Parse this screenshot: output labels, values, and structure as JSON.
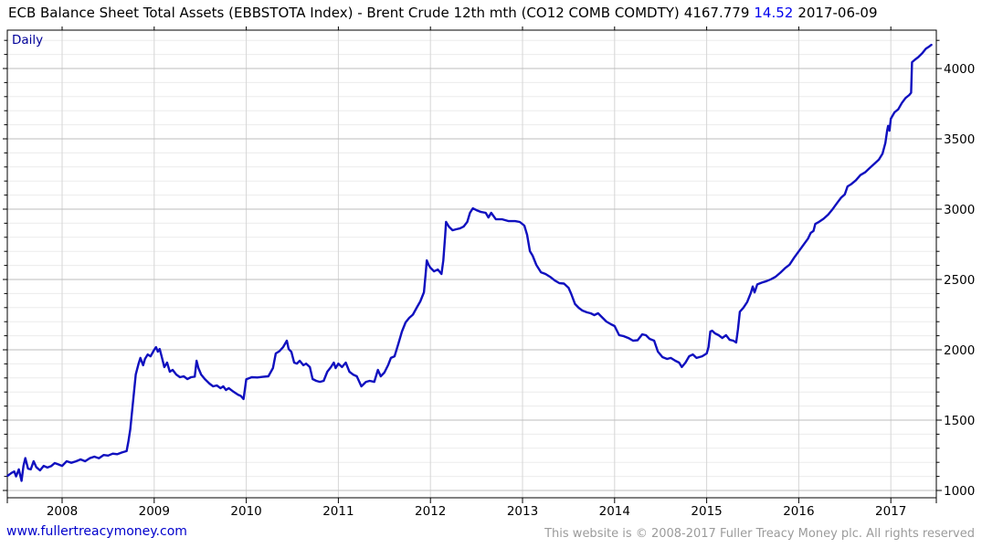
{
  "header": {
    "title": "ECB Balance Sheet Total Assets (EBBSTOTA Index) - Brent Crude 12th mth (CO12 COMB COMDTY)",
    "last_price": "4167.779",
    "change": "14.52",
    "date": "2017-06-09"
  },
  "footer": {
    "website_link": "www.fullertreacymoney.com",
    "copyright": "This website is © 2008-2017 Fuller Treacy Money plc. All rights reserved"
  },
  "colors": {
    "line": "#1010bf",
    "change_text": "#0000ee",
    "frequency_text": "#000099",
    "link": "#0000cc",
    "copyright_text": "#9b9b9b",
    "grid_minor": "#ececec",
    "grid_vertical": "#d6d6d6",
    "grid_major": "#bdbdbd",
    "axis": "#000000"
  },
  "chart_data": {
    "type": "line",
    "title": "ECB Balance Sheet Total Assets (EBBSTOTA Index) - Brent Crude 12th mth (CO12 COMB COMDTY)",
    "frequency_label": "Daily",
    "last_value": 4167.779,
    "change": 14.52,
    "date": "2017-06-09",
    "xlim": [
      2007.405,
      2017.495
    ],
    "ylim": [
      948,
      4273
    ],
    "x_ticks": [
      2008,
      2009,
      2010,
      2011,
      2012,
      2013,
      2014,
      2015,
      2016,
      2017
    ],
    "y_ticks_major": [
      1000,
      1500,
      2000,
      2500,
      3000,
      3500,
      4000
    ],
    "y_minor_step": 100,
    "grid": true,
    "legend_position": "none",
    "series": [
      {
        "name": "EBBSTOTA Index",
        "points": [
          [
            2007.41,
            1105
          ],
          [
            2007.45,
            1125
          ],
          [
            2007.48,
            1135
          ],
          [
            2007.5,
            1100
          ],
          [
            2007.53,
            1150
          ],
          [
            2007.56,
            1068
          ],
          [
            2007.58,
            1175
          ],
          [
            2007.6,
            1230
          ],
          [
            2007.63,
            1155
          ],
          [
            2007.66,
            1150
          ],
          [
            2007.69,
            1208
          ],
          [
            2007.72,
            1165
          ],
          [
            2007.76,
            1143
          ],
          [
            2007.8,
            1175
          ],
          [
            2007.84,
            1163
          ],
          [
            2007.88,
            1173
          ],
          [
            2007.92,
            1195
          ],
          [
            2007.96,
            1185
          ],
          [
            2008.0,
            1175
          ],
          [
            2008.05,
            1208
          ],
          [
            2008.1,
            1197
          ],
          [
            2008.15,
            1207
          ],
          [
            2008.2,
            1221
          ],
          [
            2008.25,
            1208
          ],
          [
            2008.3,
            1229
          ],
          [
            2008.35,
            1240
          ],
          [
            2008.4,
            1229
          ],
          [
            2008.45,
            1252
          ],
          [
            2008.5,
            1248
          ],
          [
            2008.55,
            1262
          ],
          [
            2008.6,
            1258
          ],
          [
            2008.65,
            1270
          ],
          [
            2008.7,
            1280
          ],
          [
            2008.72,
            1350
          ],
          [
            2008.74,
            1434
          ],
          [
            2008.76,
            1564
          ],
          [
            2008.78,
            1694
          ],
          [
            2008.8,
            1824
          ],
          [
            2008.83,
            1901
          ],
          [
            2008.85,
            1942
          ],
          [
            2008.88,
            1890
          ],
          [
            2008.9,
            1935
          ],
          [
            2008.93,
            1967
          ],
          [
            2008.96,
            1954
          ],
          [
            2009.0,
            2000
          ],
          [
            2009.02,
            2019
          ],
          [
            2009.04,
            1987
          ],
          [
            2009.06,
            2006
          ],
          [
            2009.08,
            1954
          ],
          [
            2009.11,
            1877
          ],
          [
            2009.14,
            1909
          ],
          [
            2009.17,
            1844
          ],
          [
            2009.2,
            1857
          ],
          [
            2009.24,
            1824
          ],
          [
            2009.28,
            1805
          ],
          [
            2009.32,
            1812
          ],
          [
            2009.36,
            1792
          ],
          [
            2009.4,
            1805
          ],
          [
            2009.44,
            1810
          ],
          [
            2009.46,
            1922
          ],
          [
            2009.48,
            1870
          ],
          [
            2009.51,
            1824
          ],
          [
            2009.55,
            1792
          ],
          [
            2009.6,
            1760
          ],
          [
            2009.64,
            1740
          ],
          [
            2009.68,
            1747
          ],
          [
            2009.72,
            1727
          ],
          [
            2009.75,
            1740
          ],
          [
            2009.78,
            1714
          ],
          [
            2009.81,
            1727
          ],
          [
            2009.85,
            1707
          ],
          [
            2009.88,
            1694
          ],
          [
            2009.91,
            1681
          ],
          [
            2009.94,
            1672
          ],
          [
            2009.97,
            1650
          ],
          [
            2010.0,
            1790
          ],
          [
            2010.06,
            1805
          ],
          [
            2010.12,
            1803
          ],
          [
            2010.18,
            1808
          ],
          [
            2010.24,
            1812
          ],
          [
            2010.29,
            1870
          ],
          [
            2010.32,
            1974
          ],
          [
            2010.36,
            1990
          ],
          [
            2010.4,
            2019
          ],
          [
            2010.44,
            2065
          ],
          [
            2010.46,
            2006
          ],
          [
            2010.49,
            1985
          ],
          [
            2010.52,
            1909
          ],
          [
            2010.55,
            1902
          ],
          [
            2010.58,
            1922
          ],
          [
            2010.62,
            1890
          ],
          [
            2010.65,
            1902
          ],
          [
            2010.69,
            1877
          ],
          [
            2010.72,
            1792
          ],
          [
            2010.76,
            1779
          ],
          [
            2010.8,
            1772
          ],
          [
            2010.84,
            1779
          ],
          [
            2010.88,
            1844
          ],
          [
            2010.92,
            1877
          ],
          [
            2010.95,
            1909
          ],
          [
            2010.97,
            1870
          ],
          [
            2011.0,
            1902
          ],
          [
            2011.04,
            1877
          ],
          [
            2011.08,
            1909
          ],
          [
            2011.12,
            1844
          ],
          [
            2011.16,
            1824
          ],
          [
            2011.2,
            1812
          ],
          [
            2011.25,
            1740
          ],
          [
            2011.3,
            1772
          ],
          [
            2011.34,
            1779
          ],
          [
            2011.39,
            1772
          ],
          [
            2011.43,
            1857
          ],
          [
            2011.46,
            1812
          ],
          [
            2011.5,
            1838
          ],
          [
            2011.54,
            1890
          ],
          [
            2011.57,
            1942
          ],
          [
            2011.61,
            1954
          ],
          [
            2011.65,
            2039
          ],
          [
            2011.69,
            2130
          ],
          [
            2011.73,
            2195
          ],
          [
            2011.77,
            2227
          ],
          [
            2011.81,
            2250
          ],
          [
            2011.85,
            2299
          ],
          [
            2011.89,
            2344
          ],
          [
            2011.93,
            2409
          ],
          [
            2011.95,
            2558
          ],
          [
            2011.96,
            2636
          ],
          [
            2011.98,
            2604
          ],
          [
            2012.0,
            2584
          ],
          [
            2012.04,
            2558
          ],
          [
            2012.08,
            2571
          ],
          [
            2012.12,
            2539
          ],
          [
            2012.14,
            2636
          ],
          [
            2012.16,
            2810
          ],
          [
            2012.17,
            2909
          ],
          [
            2012.2,
            2876
          ],
          [
            2012.24,
            2850
          ],
          [
            2012.28,
            2857
          ],
          [
            2012.32,
            2863
          ],
          [
            2012.36,
            2876
          ],
          [
            2012.4,
            2909
          ],
          [
            2012.43,
            2974
          ],
          [
            2012.46,
            3006
          ],
          [
            2012.5,
            2993
          ],
          [
            2012.55,
            2980
          ],
          [
            2012.6,
            2974
          ],
          [
            2012.63,
            2941
          ],
          [
            2012.66,
            2974
          ],
          [
            2012.71,
            2928
          ],
          [
            2012.78,
            2928
          ],
          [
            2012.85,
            2915
          ],
          [
            2012.92,
            2915
          ],
          [
            2012.97,
            2909
          ],
          [
            2013.02,
            2883
          ],
          [
            2013.05,
            2818
          ],
          [
            2013.08,
            2701
          ],
          [
            2013.11,
            2669
          ],
          [
            2013.15,
            2604
          ],
          [
            2013.2,
            2551
          ],
          [
            2013.25,
            2539
          ],
          [
            2013.3,
            2519
          ],
          [
            2013.35,
            2493
          ],
          [
            2013.4,
            2474
          ],
          [
            2013.45,
            2471
          ],
          [
            2013.5,
            2441
          ],
          [
            2013.53,
            2396
          ],
          [
            2013.57,
            2325
          ],
          [
            2013.61,
            2299
          ],
          [
            2013.65,
            2279
          ],
          [
            2013.7,
            2266
          ],
          [
            2013.74,
            2260
          ],
          [
            2013.78,
            2247
          ],
          [
            2013.82,
            2260
          ],
          [
            2013.87,
            2227
          ],
          [
            2013.91,
            2201
          ],
          [
            2013.96,
            2182
          ],
          [
            2014.0,
            2169
          ],
          [
            2014.05,
            2104
          ],
          [
            2014.1,
            2097
          ],
          [
            2014.15,
            2084
          ],
          [
            2014.2,
            2065
          ],
          [
            2014.25,
            2068
          ],
          [
            2014.3,
            2110
          ],
          [
            2014.34,
            2104
          ],
          [
            2014.38,
            2078
          ],
          [
            2014.43,
            2065
          ],
          [
            2014.47,
            1987
          ],
          [
            2014.52,
            1948
          ],
          [
            2014.57,
            1935
          ],
          [
            2014.61,
            1942
          ],
          [
            2014.66,
            1922
          ],
          [
            2014.7,
            1909
          ],
          [
            2014.73,
            1877
          ],
          [
            2014.77,
            1909
          ],
          [
            2014.81,
            1954
          ],
          [
            2014.85,
            1967
          ],
          [
            2014.89,
            1942
          ],
          [
            2014.95,
            1954
          ],
          [
            2015.0,
            1974
          ],
          [
            2015.02,
            2019
          ],
          [
            2015.04,
            2130
          ],
          [
            2015.06,
            2136
          ],
          [
            2015.09,
            2117
          ],
          [
            2015.13,
            2104
          ],
          [
            2015.17,
            2084
          ],
          [
            2015.21,
            2104
          ],
          [
            2015.25,
            2071
          ],
          [
            2015.29,
            2065
          ],
          [
            2015.32,
            2052
          ],
          [
            2015.34,
            2149
          ],
          [
            2015.36,
            2270
          ],
          [
            2015.4,
            2300
          ],
          [
            2015.44,
            2340
          ],
          [
            2015.48,
            2405
          ],
          [
            2015.5,
            2450
          ],
          [
            2015.52,
            2408
          ],
          [
            2015.55,
            2465
          ],
          [
            2015.6,
            2478
          ],
          [
            2015.65,
            2488
          ],
          [
            2015.7,
            2502
          ],
          [
            2015.75,
            2520
          ],
          [
            2015.8,
            2548
          ],
          [
            2015.85,
            2580
          ],
          [
            2015.9,
            2605
          ],
          [
            2015.95,
            2655
          ],
          [
            2016.0,
            2700
          ],
          [
            2016.05,
            2745
          ],
          [
            2016.1,
            2790
          ],
          [
            2016.13,
            2831
          ],
          [
            2016.16,
            2845
          ],
          [
            2016.18,
            2895
          ],
          [
            2016.22,
            2910
          ],
          [
            2016.27,
            2932
          ],
          [
            2016.32,
            2962
          ],
          [
            2016.37,
            3002
          ],
          [
            2016.42,
            3047
          ],
          [
            2016.46,
            3082
          ],
          [
            2016.5,
            3105
          ],
          [
            2016.53,
            3162
          ],
          [
            2016.57,
            3178
          ],
          [
            2016.62,
            3205
          ],
          [
            2016.67,
            3242
          ],
          [
            2016.72,
            3262
          ],
          [
            2016.77,
            3292
          ],
          [
            2016.82,
            3322
          ],
          [
            2016.87,
            3352
          ],
          [
            2016.91,
            3395
          ],
          [
            2016.94,
            3470
          ],
          [
            2016.96,
            3560
          ],
          [
            2016.97,
            3592
          ],
          [
            2016.985,
            3558
          ],
          [
            2017.0,
            3643
          ],
          [
            2017.04,
            3688
          ],
          [
            2017.08,
            3710
          ],
          [
            2017.12,
            3755
          ],
          [
            2017.16,
            3790
          ],
          [
            2017.2,
            3812
          ],
          [
            2017.22,
            3828
          ],
          [
            2017.23,
            4045
          ],
          [
            2017.26,
            4062
          ],
          [
            2017.3,
            4082
          ],
          [
            2017.34,
            4108
          ],
          [
            2017.38,
            4140
          ],
          [
            2017.42,
            4158
          ],
          [
            2017.44,
            4168
          ]
        ]
      }
    ]
  }
}
